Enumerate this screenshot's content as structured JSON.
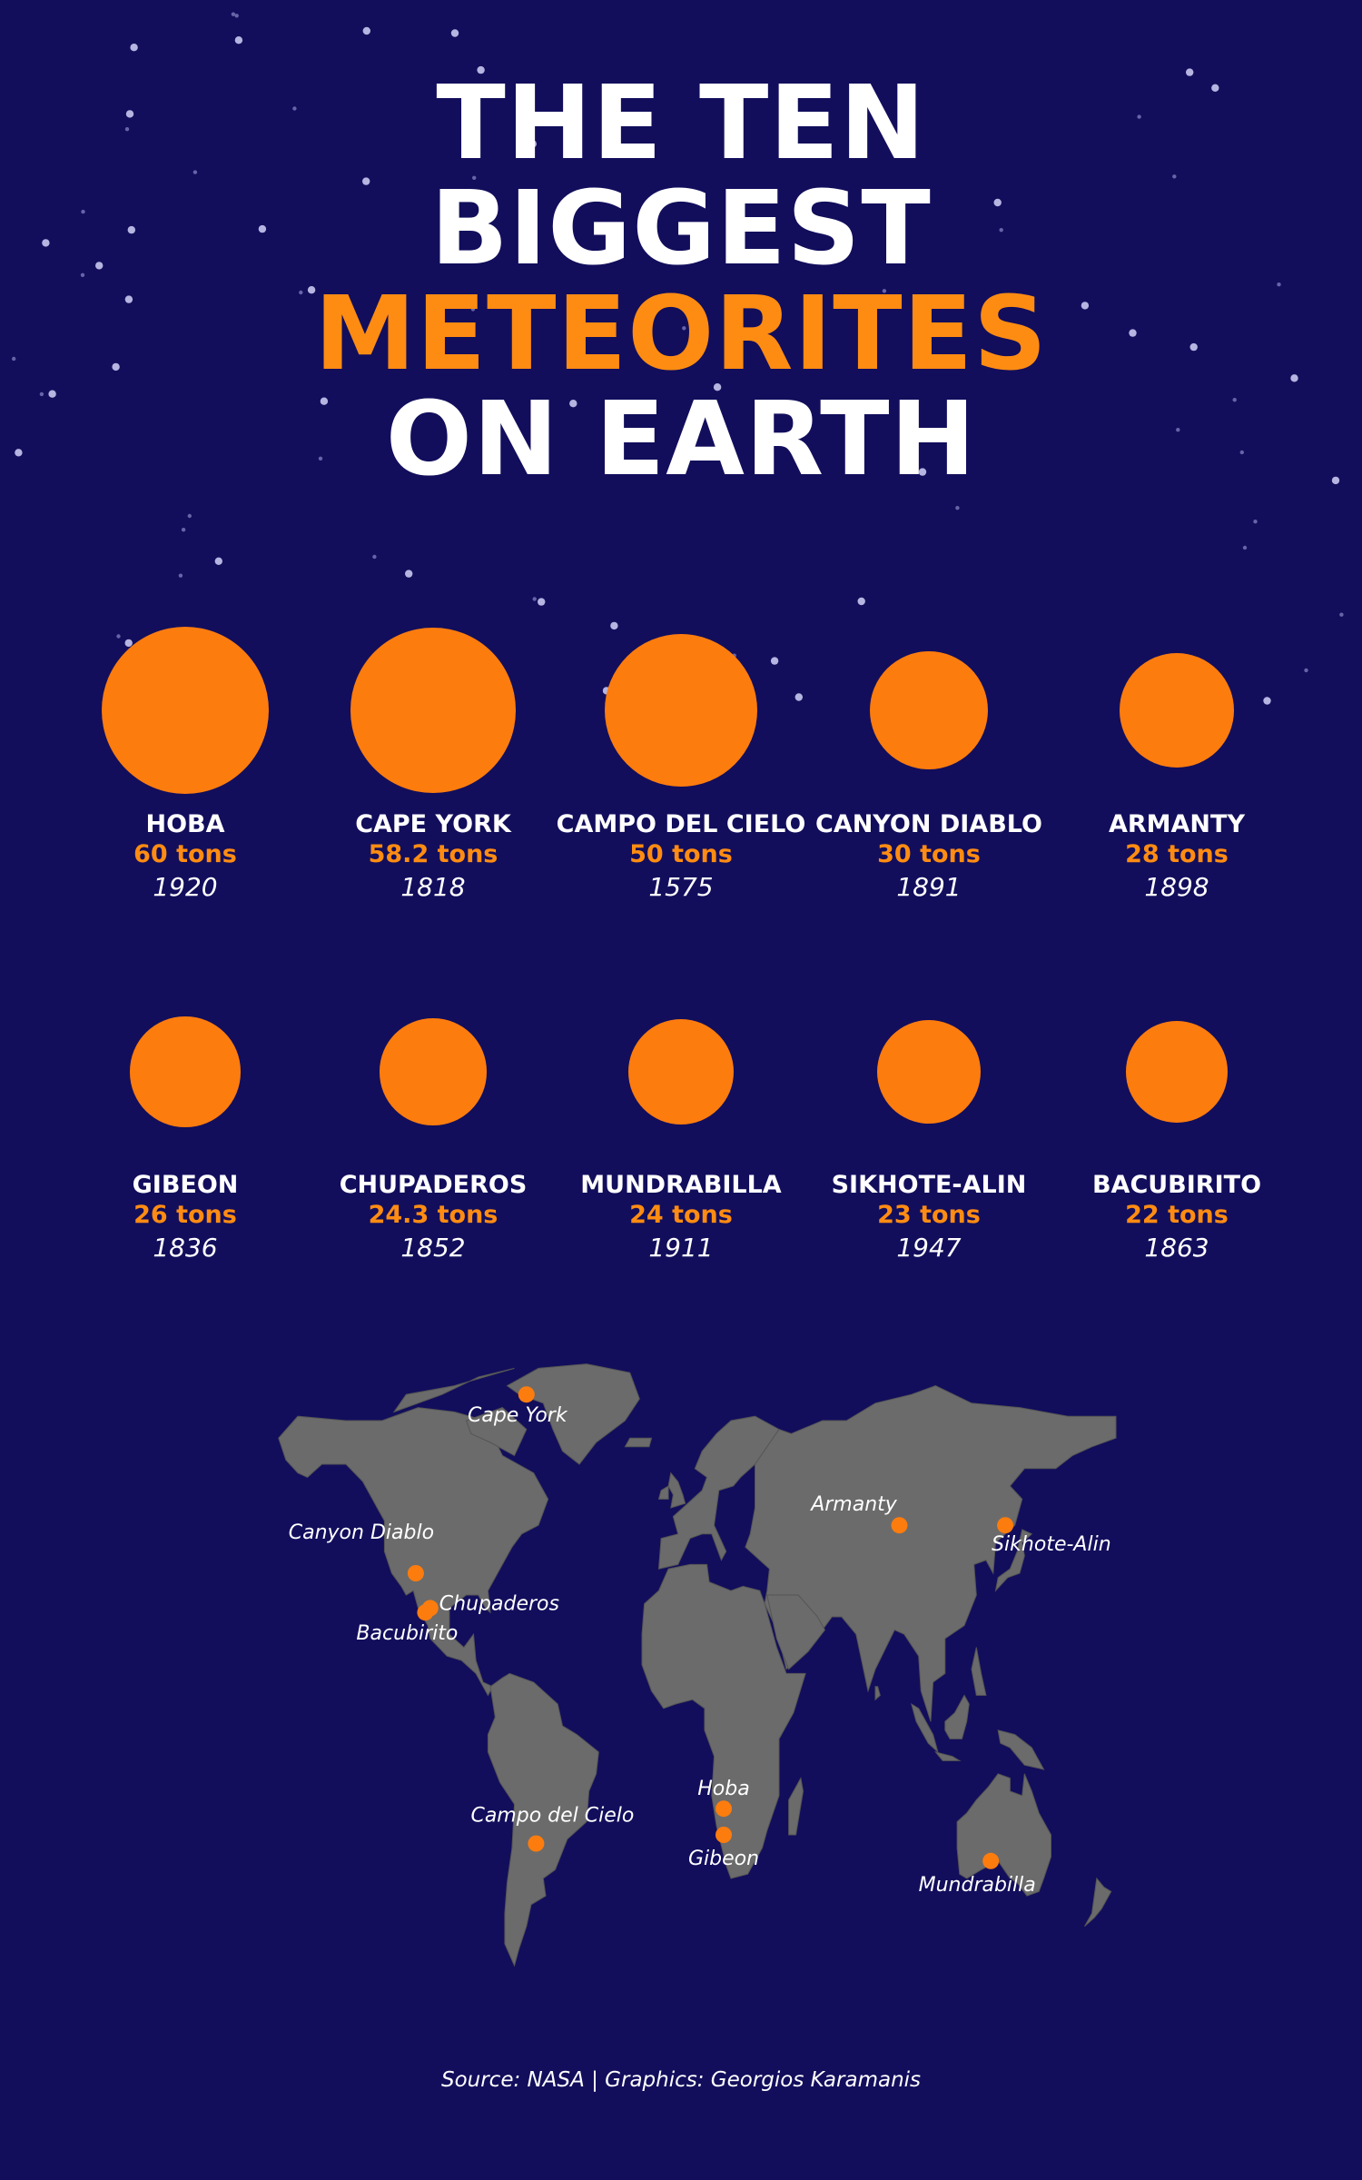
{
  "title": {
    "line1": "THE TEN",
    "line2": "BIGGEST",
    "line3": "METEORITES",
    "line4": "ON EARTH"
  },
  "colors": {
    "background": "#120e5c",
    "accent": "#ff8c12",
    "land": "#6b6b6b",
    "marker": "#fd7c0e"
  },
  "chart_data": {
    "type": "proportional-circles",
    "unit": "tons",
    "items": [
      {
        "name": "HOBA",
        "tons_label": "60 tons",
        "tons": 60,
        "year": "1920"
      },
      {
        "name": "CAPE YORK",
        "tons_label": "58.2 tons",
        "tons": 58.2,
        "year": "1818"
      },
      {
        "name": "CAMPO DEL CIELO",
        "tons_label": "50 tons",
        "tons": 50,
        "year": "1575"
      },
      {
        "name": "CANYON DIABLO",
        "tons_label": "30 tons",
        "tons": 30,
        "year": "1891"
      },
      {
        "name": "ARMANTY",
        "tons_label": "28 tons",
        "tons": 28,
        "year": "1898"
      },
      {
        "name": "GIBEON",
        "tons_label": "26 tons",
        "tons": 26,
        "year": "1836"
      },
      {
        "name": "CHUPADEROS",
        "tons_label": "24.3 tons",
        "tons": 24.3,
        "year": "1852"
      },
      {
        "name": "MUNDRABILLA",
        "tons_label": "24 tons",
        "tons": 24,
        "year": "1911"
      },
      {
        "name": "SIKHOTE-ALIN",
        "tons_label": "23 tons",
        "tons": 23,
        "year": "1947"
      },
      {
        "name": "BACUBIRITO",
        "tons_label": "22 tons",
        "tons": 22,
        "year": "1863"
      }
    ],
    "locations": [
      {
        "label": "Cape York",
        "lat": 76,
        "lon": -65
      },
      {
        "label": "Canyon Diablo",
        "lat": 35,
        "lon": -111
      },
      {
        "label": "Chupaderos",
        "lat": 27,
        "lon": -105
      },
      {
        "label": "Bacubirito",
        "lat": 26,
        "lon": -107
      },
      {
        "label": "Armanty",
        "lat": 46,
        "lon": 90
      },
      {
        "label": "Sikhote-Alin",
        "lat": 46,
        "lon": 134
      },
      {
        "label": "Hoba",
        "lat": -19,
        "lon": 17
      },
      {
        "label": "Gibeon",
        "lat": -25,
        "lon": 17
      },
      {
        "label": "Campo del Cielo",
        "lat": -27,
        "lon": -61
      },
      {
        "label": "Mundrabilla",
        "lat": -31,
        "lon": 128
      }
    ]
  },
  "footer": {
    "source": "Source: NASA | Graphics: Georgios Karamanis"
  }
}
